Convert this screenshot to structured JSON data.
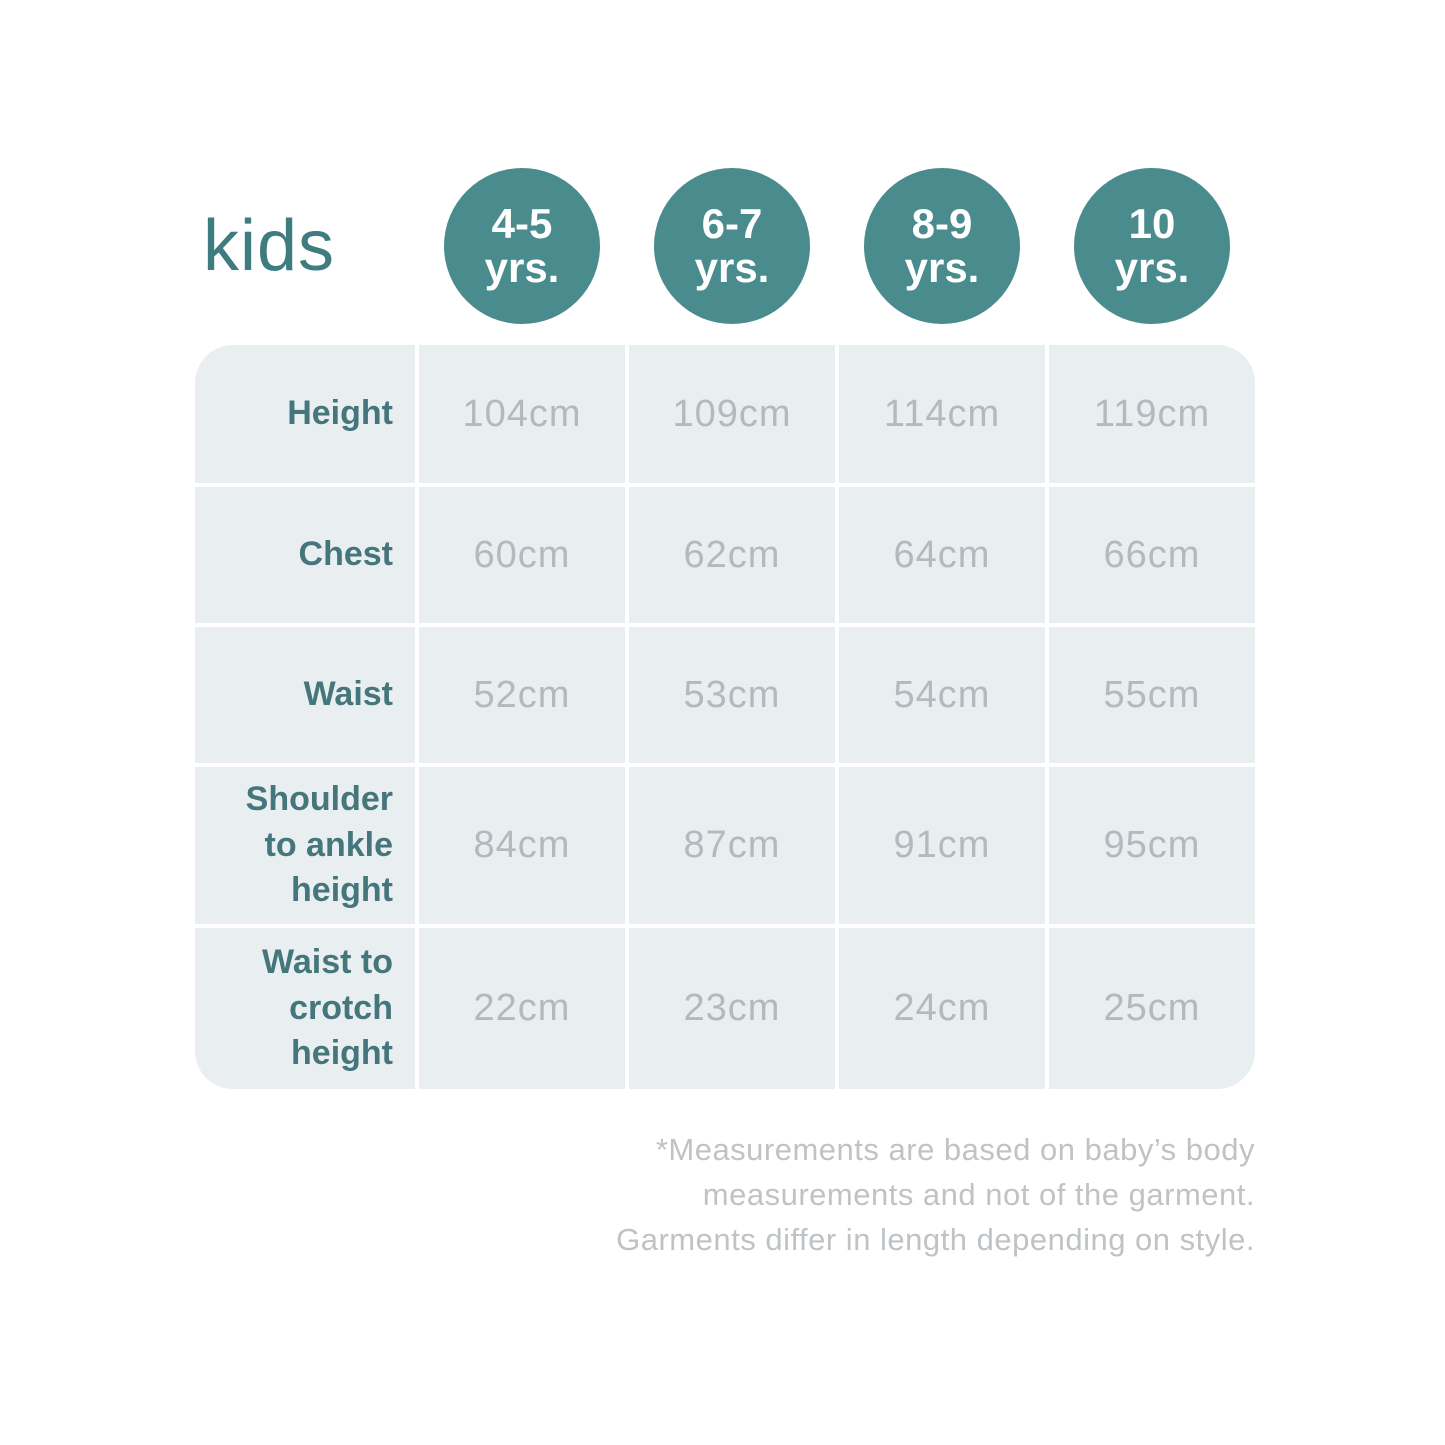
{
  "page": {
    "title": "kids",
    "background": "#ffffff"
  },
  "colors": {
    "badge_teal": "#4a8b8e",
    "title_teal": "#3e7c80",
    "label_teal": "#45767b",
    "cell_background": "#e9eef1",
    "value_gray": "#b3b9bd",
    "footnote_gray": "#bfc3c6"
  },
  "age_badges": [
    {
      "years": "4-5",
      "unit": "yrs."
    },
    {
      "years": "6-7",
      "unit": "yrs."
    },
    {
      "years": "8-9",
      "unit": "yrs."
    },
    {
      "years": "10",
      "unit": "yrs."
    }
  ],
  "chart_data": {
    "type": "table",
    "title": "kids",
    "columns": [
      "4-5 yrs.",
      "6-7 yrs.",
      "8-9 yrs.",
      "10 yrs."
    ],
    "rows": [
      {
        "label": "Height",
        "values": [
          "104cm",
          "109cm",
          "114cm",
          "119cm"
        ]
      },
      {
        "label": "Chest",
        "values": [
          "60cm",
          "62cm",
          "64cm",
          "66cm"
        ]
      },
      {
        "label": "Waist",
        "values": [
          "52cm",
          "53cm",
          "54cm",
          "55cm"
        ]
      },
      {
        "label": "Shoulder to ankle height",
        "values": [
          "84cm",
          "87cm",
          "91cm",
          "95cm"
        ]
      },
      {
        "label": "Waist to crotch height",
        "values": [
          "22cm",
          "23cm",
          "24cm",
          "25cm"
        ]
      }
    ]
  },
  "footnote": {
    "lines": [
      "*Measurements are based on baby’s body",
      "measurements and not of the garment.",
      "Garments differ in length depending on style."
    ]
  }
}
